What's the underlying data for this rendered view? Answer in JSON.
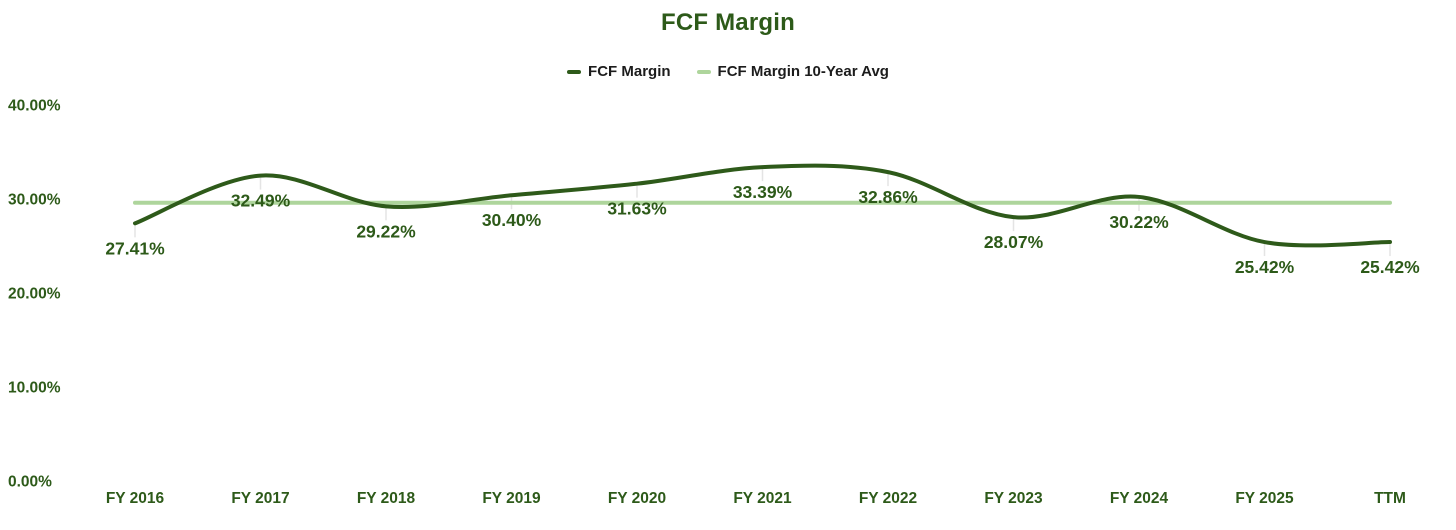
{
  "chart_data": {
    "type": "line",
    "title": "FCF Margin",
    "categories": [
      "FY 2016",
      "FY 2017",
      "FY 2018",
      "FY 2019",
      "FY 2020",
      "FY 2021",
      "FY 2022",
      "FY 2023",
      "FY 2024",
      "FY 2025",
      "TTM"
    ],
    "series": [
      {
        "name": "FCF Margin",
        "type": "spline",
        "color": "#2e5a1a",
        "values": [
          27.41,
          32.49,
          29.22,
          30.4,
          31.63,
          33.39,
          32.86,
          28.07,
          30.22,
          25.42,
          25.42
        ],
        "data_labels": [
          "27.41%",
          "32.49%",
          "29.22%",
          "30.40%",
          "31.63%",
          "33.39%",
          "32.86%",
          "28.07%",
          "30.22%",
          "25.42%",
          "25.42%"
        ]
      },
      {
        "name": "FCF Margin 10-Year Avg",
        "type": "horizontal-line",
        "color": "#aed59c",
        "value": 29.6
      }
    ],
    "ylabel": "",
    "xlabel": "",
    "ylim": [
      0,
      40
    ],
    "yticks": [
      {
        "value": 40,
        "label": "40.00%"
      },
      {
        "value": 30,
        "label": "30.00%"
      },
      {
        "value": 20,
        "label": "20.00%"
      },
      {
        "value": 10,
        "label": "10.00%"
      },
      {
        "value": 0,
        "label": "0.00%"
      }
    ],
    "grid": false,
    "legend_position": "top",
    "colors": {
      "text_green": "#2d5a19",
      "legend_text": "#1c1c1c",
      "background": "#ffffff",
      "point_tick": "#e4e4e4"
    }
  }
}
